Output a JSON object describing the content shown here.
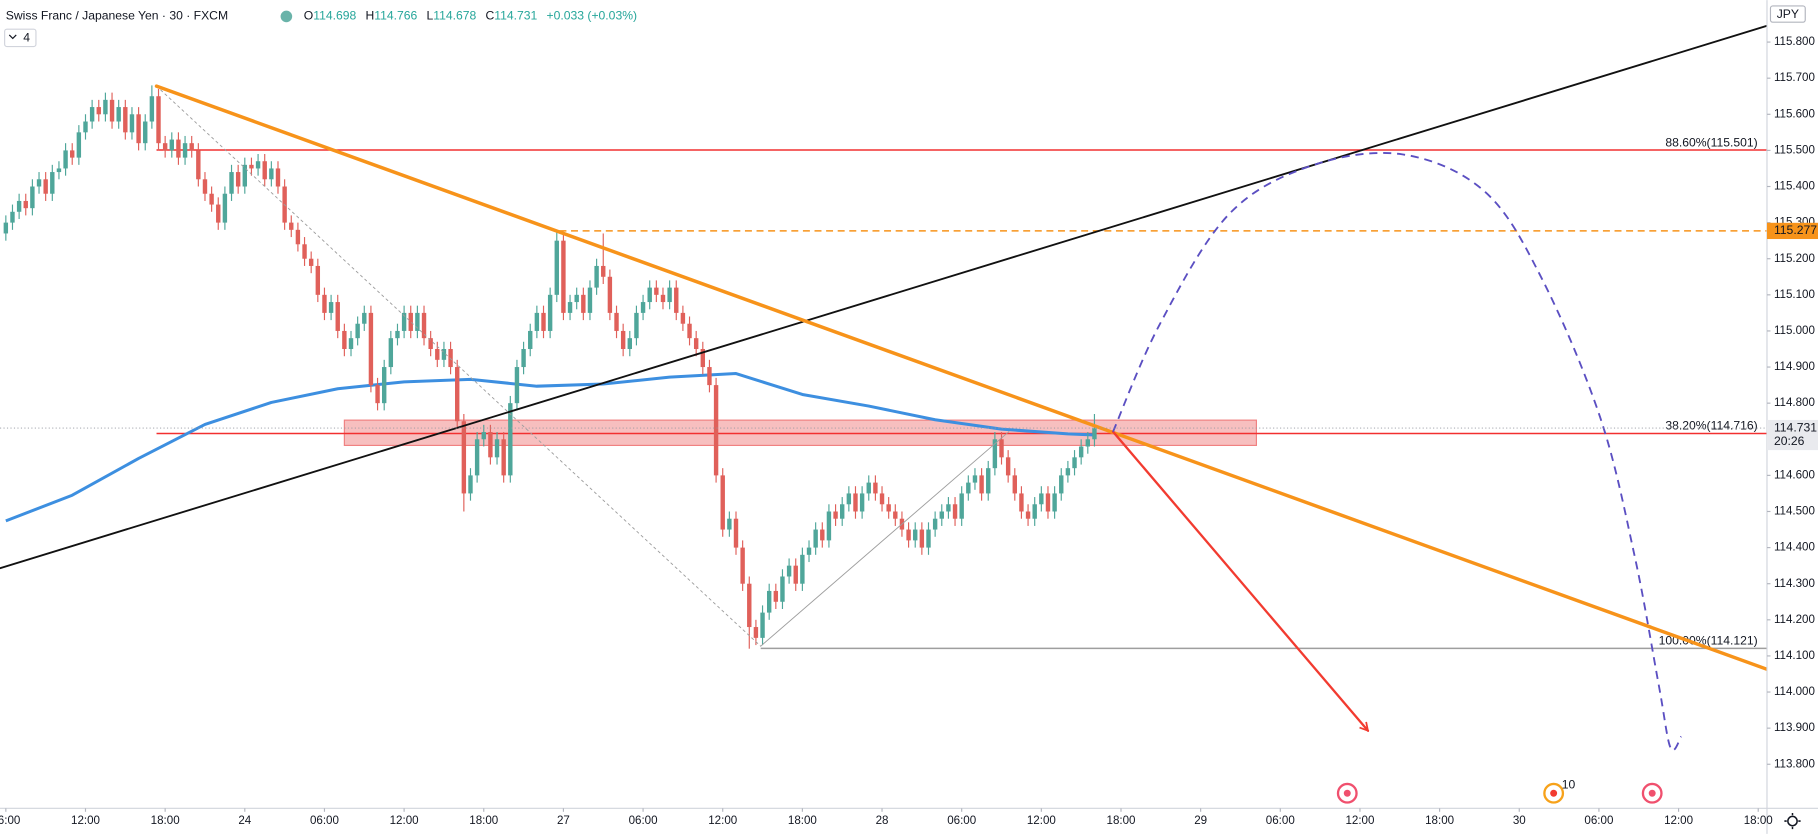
{
  "chart_data": {
    "type": "candlestick",
    "header": {
      "symbol": "Swiss Franc / Japanese Yen · 30 · FXCM",
      "ohlc": [
        {
          "key": "O",
          "value": "114.698"
        },
        {
          "key": "H",
          "value": "114.766"
        },
        {
          "key": "L",
          "value": "114.678"
        },
        {
          "key": "C",
          "value": "114.731"
        }
      ],
      "change": "+0.033 (+0.03%)",
      "collapsed": "4"
    },
    "currency": "JPY",
    "event_badge": "10",
    "up_color": "#4fa69a",
    "down_color": "#e0605a",
    "x": [
      0,
      0.5,
      1,
      1.5,
      2,
      2.5,
      3,
      3.5,
      4,
      4.5,
      5,
      5.5,
      6,
      6.5,
      7,
      7.5,
      8,
      8.5,
      9,
      9.5,
      10,
      10.5,
      11,
      11.5,
      12,
      12.5,
      13,
      13.5,
      14,
      14.5,
      15,
      15.5,
      16,
      16.5,
      17,
      17.5,
      18,
      18.5,
      19,
      19.5,
      20,
      20.5,
      21,
      21.5,
      22,
      22.5,
      23,
      23.5,
      24,
      24.5,
      25,
      25.5,
      26,
      26.5,
      27,
      27.5,
      28,
      28.5,
      29,
      29.5,
      30,
      30.5,
      31,
      31.5,
      32,
      32.5,
      33,
      33.5,
      34,
      34.5,
      35,
      35.5,
      36,
      36.5,
      37,
      37.5,
      38,
      38.5,
      39,
      39.5,
      40,
      40.5,
      41,
      41.5,
      42,
      42.5,
      43,
      43.5,
      44,
      44.5,
      45,
      45.5,
      46,
      46.5,
      47,
      47.5,
      48,
      48.5,
      49,
      49.5,
      50,
      50.5,
      51,
      51.5,
      52,
      52.5,
      53,
      53.5,
      54,
      54.5,
      55,
      55.5,
      56,
      56.5,
      57,
      57.5,
      58,
      58.5,
      59,
      59.5,
      60,
      60.5,
      61,
      61.5,
      62,
      62.5,
      63,
      63.5,
      64,
      64.5,
      65,
      65.5,
      66,
      66.5,
      67,
      67.5,
      68,
      68.5,
      69,
      69.5,
      70,
      70.5,
      71,
      71.5,
      72,
      72.5,
      73,
      73.5,
      74,
      74.5,
      75,
      75.5,
      76,
      76.5,
      77,
      77.5,
      78,
      78.5,
      79,
      79.5,
      80,
      80.5,
      81,
      81.5,
      82
    ],
    "open": [
      115.27,
      115.3,
      115.33,
      115.36,
      115.34,
      115.4,
      115.42,
      115.38,
      115.44,
      115.45,
      115.5,
      115.48,
      115.55,
      115.58,
      115.62,
      115.6,
      115.64,
      115.58,
      115.62,
      115.55,
      115.6,
      115.52,
      115.58,
      115.65,
      115.52,
      115.5,
      115.53,
      115.48,
      115.52,
      115.5,
      115.42,
      115.38,
      115.35,
      115.3,
      115.38,
      115.44,
      115.4,
      115.46,
      115.45,
      115.47,
      115.42,
      115.45,
      115.4,
      115.3,
      115.28,
      115.24,
      115.2,
      115.18,
      115.1,
      115.05,
      115.08,
      115.0,
      114.95,
      114.98,
      115.02,
      115.05,
      114.85,
      114.8,
      114.9,
      114.98,
      115.0,
      115.05,
      115.0,
      115.05,
      114.98,
      114.95,
      114.92,
      114.95,
      114.9,
      114.75,
      114.55,
      114.6,
      114.7,
      114.72,
      114.65,
      114.7,
      114.6,
      114.8,
      114.9,
      114.95,
      115.0,
      115.05,
      115.0,
      115.1,
      115.25,
      115.05,
      115.08,
      115.1,
      115.05,
      115.12,
      115.18,
      115.15,
      115.05,
      115.0,
      114.95,
      114.98,
      115.05,
      115.08,
      115.12,
      115.1,
      115.08,
      115.12,
      115.05,
      115.02,
      114.98,
      114.95,
      114.9,
      114.85,
      114.6,
      114.45,
      114.48,
      114.4,
      114.3,
      114.18,
      114.15,
      114.22,
      114.28,
      114.25,
      114.32,
      114.35,
      114.3,
      114.38,
      114.4,
      114.45,
      114.42,
      114.5,
      114.48,
      114.52,
      114.55,
      114.5,
      114.55,
      114.58,
      114.55,
      114.52,
      114.5,
      114.48,
      114.45,
      114.42,
      114.45,
      114.4,
      114.45,
      114.48,
      114.5,
      114.52,
      114.48,
      114.55,
      114.58,
      114.6,
      114.55,
      114.62,
      114.7,
      114.65,
      114.6,
      114.55,
      114.5,
      114.48,
      114.52,
      114.55,
      114.5,
      114.55,
      114.6,
      114.62,
      114.65,
      114.68,
      114.7
    ],
    "high": [
      115.32,
      115.35,
      115.38,
      115.38,
      115.42,
      115.44,
      115.44,
      115.46,
      115.47,
      115.52,
      115.52,
      115.57,
      115.6,
      115.64,
      115.64,
      115.66,
      115.66,
      115.64,
      115.64,
      115.62,
      115.62,
      115.6,
      115.68,
      115.67,
      115.54,
      115.55,
      115.55,
      115.54,
      115.54,
      115.52,
      115.44,
      115.4,
      115.37,
      115.4,
      115.46,
      115.46,
      115.48,
      115.48,
      115.49,
      115.49,
      115.47,
      115.47,
      115.42,
      115.32,
      115.3,
      115.26,
      115.22,
      115.2,
      115.12,
      115.1,
      115.1,
      115.02,
      115.0,
      115.04,
      115.07,
      115.07,
      114.87,
      114.92,
      115.0,
      115.02,
      115.07,
      115.07,
      115.07,
      115.07,
      115.0,
      114.97,
      114.97,
      114.97,
      114.92,
      114.77,
      114.62,
      114.72,
      114.74,
      114.74,
      114.72,
      114.72,
      114.82,
      114.92,
      114.97,
      115.02,
      115.07,
      115.07,
      115.12,
      115.28,
      115.27,
      115.1,
      115.12,
      115.12,
      115.14,
      115.2,
      115.27,
      115.17,
      115.07,
      115.02,
      115.0,
      115.07,
      115.1,
      115.14,
      115.14,
      115.12,
      115.14,
      115.14,
      115.07,
      115.04,
      115.0,
      114.97,
      114.92,
      114.87,
      114.62,
      114.5,
      114.5,
      114.42,
      114.32,
      114.2,
      114.24,
      114.3,
      114.3,
      114.34,
      114.37,
      114.37,
      114.4,
      114.42,
      114.47,
      114.47,
      114.52,
      114.52,
      114.54,
      114.57,
      114.57,
      114.57,
      114.6,
      114.6,
      114.57,
      114.54,
      114.52,
      114.5,
      114.47,
      114.47,
      114.47,
      114.47,
      114.5,
      114.52,
      114.54,
      114.54,
      114.57,
      114.6,
      114.62,
      114.62,
      114.64,
      114.72,
      114.72,
      114.67,
      114.62,
      114.57,
      114.52,
      114.54,
      114.57,
      114.57,
      114.57,
      114.62,
      114.64,
      114.67,
      114.7,
      114.72,
      114.77
    ],
    "low": [
      115.25,
      115.28,
      115.31,
      115.32,
      115.32,
      115.38,
      115.36,
      115.36,
      115.42,
      115.43,
      115.46,
      115.46,
      115.53,
      115.56,
      115.58,
      115.58,
      115.56,
      115.56,
      115.53,
      115.53,
      115.5,
      115.5,
      115.56,
      115.5,
      115.48,
      115.48,
      115.46,
      115.46,
      115.48,
      115.4,
      115.36,
      115.33,
      115.28,
      115.28,
      115.36,
      115.38,
      115.38,
      115.43,
      115.43,
      115.4,
      115.4,
      115.38,
      115.28,
      115.26,
      115.22,
      115.18,
      115.16,
      115.08,
      115.03,
      115.03,
      114.98,
      114.93,
      114.93,
      114.96,
      115.0,
      114.83,
      114.78,
      114.78,
      114.88,
      114.96,
      114.98,
      114.98,
      114.98,
      114.96,
      114.93,
      114.9,
      114.9,
      114.88,
      114.73,
      114.5,
      114.53,
      114.58,
      114.68,
      114.63,
      114.63,
      114.58,
      114.58,
      114.78,
      114.88,
      114.93,
      114.98,
      114.98,
      114.98,
      115.08,
      115.03,
      115.03,
      115.06,
      115.03,
      115.03,
      115.1,
      115.13,
      115.03,
      114.98,
      114.93,
      114.93,
      114.96,
      115.03,
      115.06,
      115.08,
      115.06,
      115.06,
      115.03,
      115.0,
      114.96,
      114.93,
      114.88,
      114.83,
      114.58,
      114.43,
      114.43,
      114.38,
      114.28,
      114.12,
      114.13,
      114.13,
      114.2,
      114.23,
      114.23,
      114.3,
      114.28,
      114.28,
      114.36,
      114.38,
      114.4,
      114.4,
      114.46,
      114.46,
      114.5,
      114.48,
      114.48,
      114.53,
      114.53,
      114.5,
      114.48,
      114.46,
      114.43,
      114.4,
      114.4,
      114.38,
      114.38,
      114.43,
      114.46,
      114.48,
      114.46,
      114.46,
      114.53,
      114.56,
      114.53,
      114.53,
      114.6,
      114.63,
      114.58,
      114.53,
      114.48,
      114.46,
      114.46,
      114.5,
      114.48,
      114.48,
      114.53,
      114.58,
      114.6,
      114.63,
      114.66,
      114.68
    ],
    "close": [
      115.3,
      115.33,
      115.36,
      115.34,
      115.4,
      115.42,
      115.38,
      115.44,
      115.45,
      115.5,
      115.48,
      115.55,
      115.58,
      115.62,
      115.6,
      115.64,
      115.58,
      115.62,
      115.55,
      115.6,
      115.52,
      115.58,
      115.65,
      115.52,
      115.5,
      115.53,
      115.48,
      115.52,
      115.5,
      115.42,
      115.38,
      115.35,
      115.3,
      115.38,
      115.44,
      115.4,
      115.46,
      115.45,
      115.47,
      115.42,
      115.45,
      115.4,
      115.3,
      115.28,
      115.24,
      115.2,
      115.18,
      115.1,
      115.05,
      115.08,
      115.0,
      114.95,
      114.98,
      115.02,
      115.05,
      114.85,
      114.8,
      114.9,
      114.98,
      115.0,
      115.05,
      115.0,
      115.05,
      114.98,
      114.95,
      114.92,
      114.95,
      114.9,
      114.75,
      114.55,
      114.6,
      114.7,
      114.72,
      114.65,
      114.7,
      114.6,
      114.8,
      114.9,
      114.95,
      115.0,
      115.05,
      115.0,
      115.1,
      115.25,
      115.05,
      115.08,
      115.1,
      115.05,
      115.12,
      115.18,
      115.15,
      115.05,
      115.0,
      114.95,
      114.98,
      115.05,
      115.08,
      115.12,
      115.1,
      115.08,
      115.12,
      115.05,
      115.02,
      114.98,
      114.95,
      114.9,
      114.85,
      114.6,
      114.45,
      114.48,
      114.4,
      114.3,
      114.18,
      114.15,
      114.22,
      114.28,
      114.25,
      114.32,
      114.35,
      114.3,
      114.38,
      114.4,
      114.45,
      114.42,
      114.5,
      114.48,
      114.52,
      114.55,
      114.5,
      114.55,
      114.58,
      114.55,
      114.52,
      114.5,
      114.48,
      114.45,
      114.42,
      114.45,
      114.4,
      114.45,
      114.48,
      114.5,
      114.52,
      114.48,
      114.55,
      114.58,
      114.6,
      114.55,
      114.62,
      114.7,
      114.65,
      114.6,
      114.55,
      114.5,
      114.48,
      114.52,
      114.55,
      114.5,
      114.55,
      114.6,
      114.62,
      114.65,
      114.68,
      114.7,
      114.73
    ],
    "moving_average": {
      "color": "#3d8fe0",
      "x": [
        0,
        5,
        10,
        15,
        20,
        25,
        30,
        35,
        40,
        45,
        50,
        55,
        60,
        65,
        70,
        75,
        80,
        82
      ],
      "values": [
        114.474,
        114.545,
        114.647,
        114.741,
        114.802,
        114.84,
        114.859,
        114.866,
        114.847,
        114.853,
        114.872,
        114.882,
        114.824,
        114.792,
        114.754,
        114.728,
        114.715,
        114.712
      ]
    },
    "zone": {
      "from": 114.683,
      "to": 114.753,
      "x": [
        25.5,
        94.2
      ],
      "color": "#f08080"
    },
    "levels": [
      {
        "value": 115.501,
        "label": "88.60%(115.501)",
        "color": "#f23030",
        "x_start": 11.35
      },
      {
        "value": 114.716,
        "label": "38.20%(114.716)",
        "color": "#f23030",
        "x_start": 11.35
      },
      {
        "value": 114.121,
        "label": "100.00%(114.121)",
        "color": "#9e9e9e",
        "x_start": 56.86
      },
      {
        "value": 115.277,
        "color": "#f7931a",
        "dash": true,
        "x_start": 41.7
      }
    ],
    "trendlines": [
      {
        "color": "#9e9e9e",
        "width": 0.8,
        "dash": true,
        "x": [
          11.35,
          56.86
        ],
        "values": [
          115.678,
          114.127
        ]
      },
      {
        "color": "#9e9e9e",
        "width": 0.8,
        "x": [
          56.86,
          75.55
        ],
        "values": [
          114.127,
          114.721
        ]
      },
      {
        "color": "#111111",
        "width": 1.6,
        "x": [
          -0.44,
          132.66
        ],
        "values": [
          114.343,
          115.845
        ]
      },
      {
        "color": "#f7931a",
        "width": 3,
        "x": [
          11.35,
          132.66
        ],
        "values": [
          115.678,
          114.063
        ]
      },
      {
        "color": "#f23b30",
        "width": 2,
        "arrow": true,
        "x": [
          83.4,
          102.6
        ],
        "values": [
          114.721,
          113.893
        ]
      }
    ],
    "projection": {
      "color": "#5b4fc2",
      "x": [
        83.4,
        86.9,
        92.1,
        98.3,
        105.2,
        111.4,
        115.7,
        120.1,
        122.7,
        124.5,
        125.4,
        126.2
      ],
      "values": [
        114.721,
        115.017,
        115.322,
        115.457,
        115.489,
        115.386,
        115.145,
        114.76,
        114.375,
        114.021,
        113.845,
        113.877
      ]
    },
    "last_price": {
      "value": 114.731,
      "countdown": "20:26"
    },
    "xlim": [
      -0.44,
      132.66
    ],
    "ylim": [
      113.678,
      115.916
    ],
    "grid": false,
    "xticks": [
      {
        "value": 0,
        "label": "06:00"
      },
      {
        "value": 6,
        "label": "12:00"
      },
      {
        "value": 12,
        "label": "18:00"
      },
      {
        "value": 18,
        "label": "24"
      },
      {
        "value": 24,
        "label": "06:00"
      },
      {
        "value": 30,
        "label": "12:00"
      },
      {
        "value": 36,
        "label": "18:00"
      },
      {
        "value": 42,
        "label": "27"
      },
      {
        "value": 48,
        "label": "06:00"
      },
      {
        "value": 54,
        "label": "12:00"
      },
      {
        "value": 60,
        "label": "18:00"
      },
      {
        "value": 66,
        "label": "28"
      },
      {
        "value": 72,
        "label": "06:00"
      },
      {
        "value": 78,
        "label": "12:00"
      },
      {
        "value": 84,
        "label": "18:00"
      },
      {
        "value": 90,
        "label": "29"
      },
      {
        "value": 96,
        "label": "06:00"
      },
      {
        "value": 102,
        "label": "12:00"
      },
      {
        "value": 108,
        "label": "18:00"
      },
      {
        "value": 114,
        "label": "30"
      },
      {
        "value": 120,
        "label": "06:00"
      },
      {
        "value": 126,
        "label": "12:00"
      },
      {
        "value": 132,
        "label": "18:00"
      }
    ],
    "yticks": [
      {
        "value": 113.8,
        "label": "113.800"
      },
      {
        "value": 113.9,
        "label": "113.900"
      },
      {
        "value": 114.0,
        "label": "114.000"
      },
      {
        "value": 114.1,
        "label": "114.100"
      },
      {
        "value": 114.2,
        "label": "114.200"
      },
      {
        "value": 114.3,
        "label": "114.300"
      },
      {
        "value": 114.4,
        "label": "114.400"
      },
      {
        "value": 114.5,
        "label": "114.500"
      },
      {
        "value": 114.6,
        "label": "114.600"
      },
      {
        "value": 114.7,
        "label": "114.700"
      },
      {
        "value": 114.8,
        "label": "114.800"
      },
      {
        "value": 114.9,
        "label": "114.900"
      },
      {
        "value": 115.0,
        "label": "115.000"
      },
      {
        "value": 115.1,
        "label": "115.100"
      },
      {
        "value": 115.2,
        "label": "115.200"
      },
      {
        "value": 115.3,
        "label": "115.300"
      },
      {
        "value": 115.4,
        "label": "115.400"
      },
      {
        "value": 115.5,
        "label": "115.500"
      },
      {
        "value": 115.6,
        "label": "115.600"
      },
      {
        "value": 115.7,
        "label": "115.700"
      },
      {
        "value": 115.8,
        "label": "115.800"
      }
    ]
  }
}
